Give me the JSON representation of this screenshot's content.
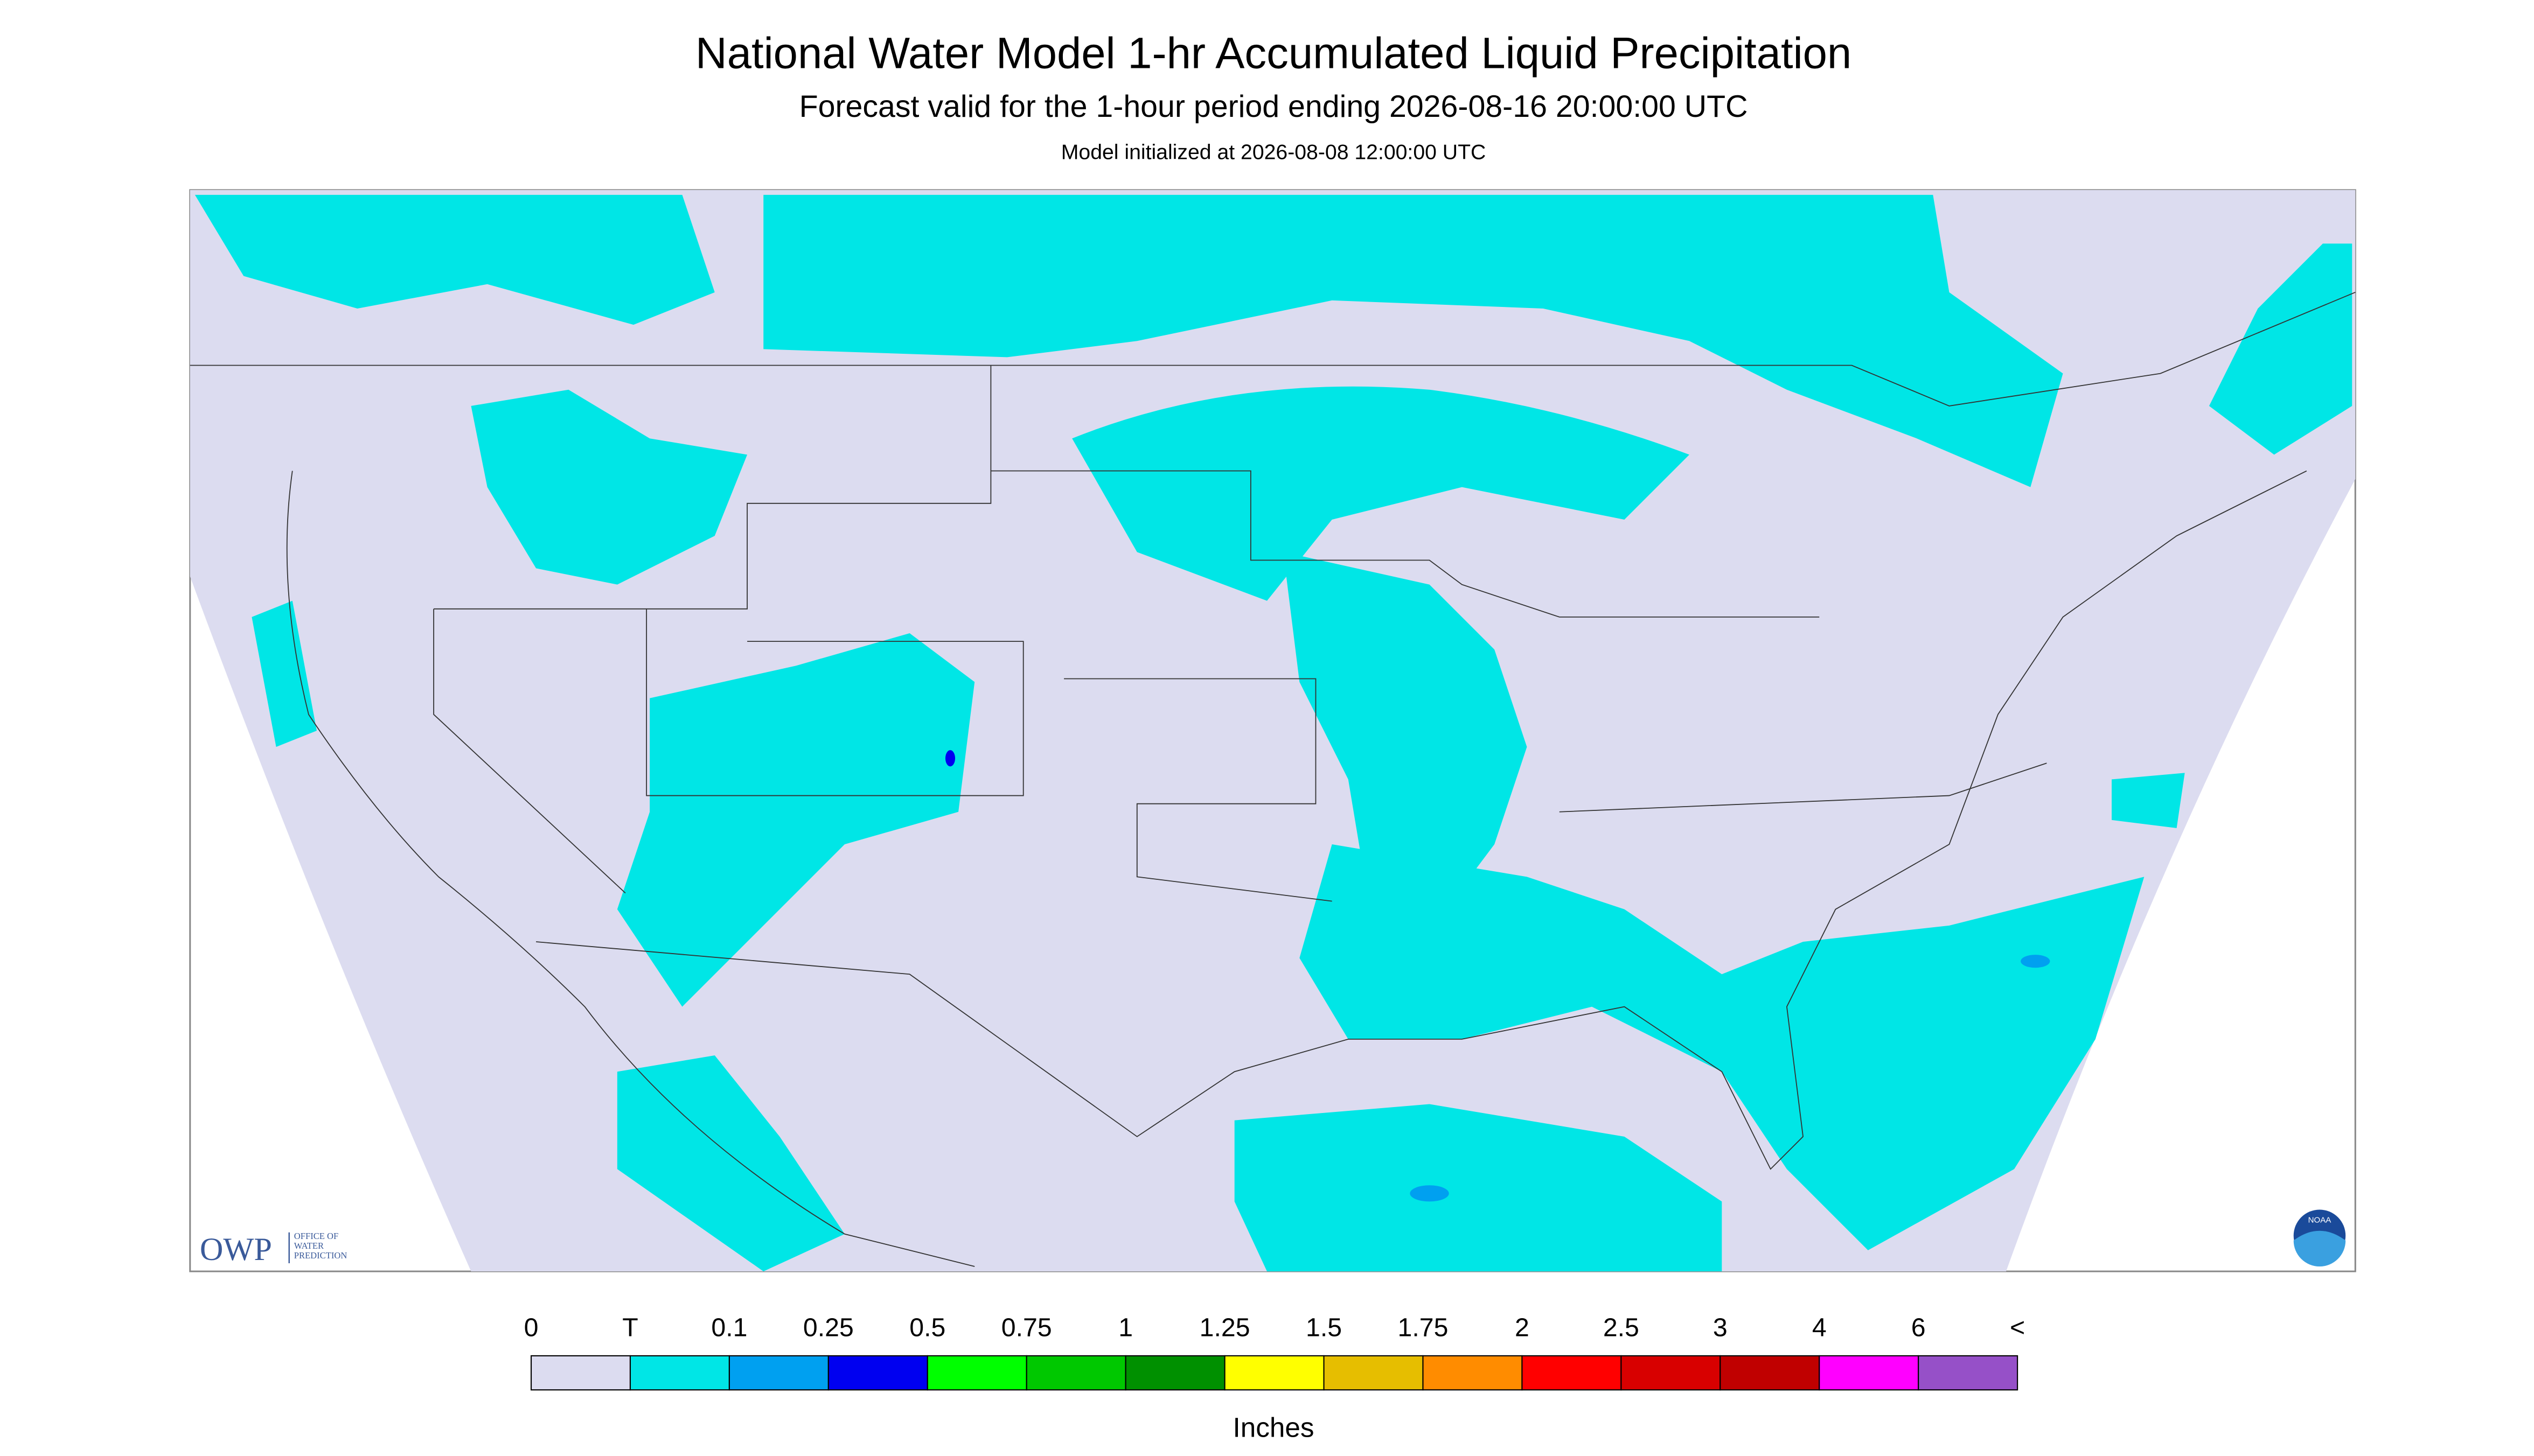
{
  "header": {
    "title": "National Water Model 1-hr Accumulated Liquid Precipitation",
    "subtitle": "Forecast valid for the 1-hour period ending 2026-08-16 20:00:00 UTC",
    "init": "Model initialized at 2026-08-08 12:00:00 UTC"
  },
  "logos": {
    "owp": "OWP",
    "owp_sub": [
      "OFFICE OF",
      "WATER",
      "PREDICTION"
    ],
    "noaa": "NOAA"
  },
  "legend": {
    "labels": [
      "0",
      "T",
      "0.1",
      "0.25",
      "0.5",
      "0.75",
      "1",
      "1.25",
      "1.5",
      "1.75",
      "2",
      "2.5",
      "3",
      "4",
      "6",
      "<"
    ],
    "colors": [
      "#dcdcf0",
      "#00e6e6",
      "#00a0f0",
      "#0000f0",
      "#00ff00",
      "#00c800",
      "#009000",
      "#ffff00",
      "#e6be00",
      "#ff8c00",
      "#ff0000",
      "#d80000",
      "#c00000",
      "#ff00ff",
      "#9650c8"
    ],
    "units": "Inches"
  }
}
